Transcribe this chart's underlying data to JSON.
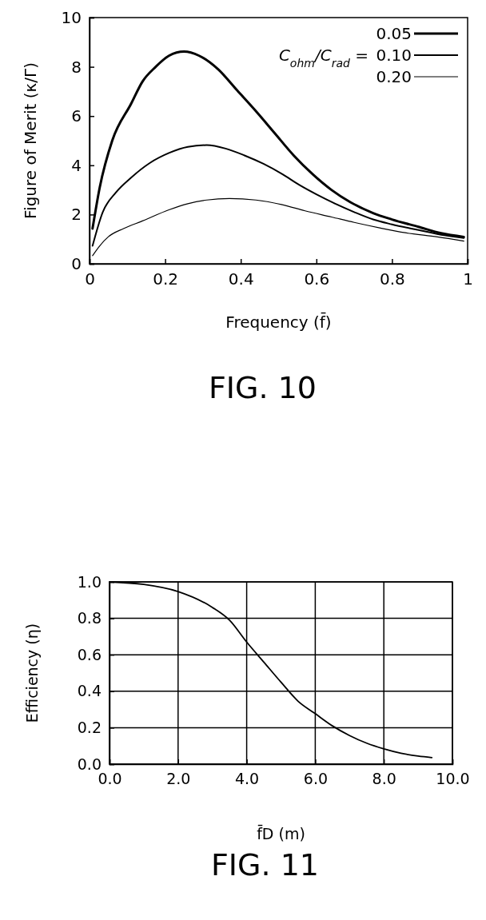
{
  "chart_data": [
    {
      "type": "line",
      "title": "FIG. 10",
      "xlabel": "Frequency (f̄)",
      "ylabel": "Figure of Merit (κ/Γ)",
      "legend_title": "C$_{ohm}$/C$_{rad}$ =",
      "legend": "top right",
      "grid": false,
      "marker": "none",
      "line_style": "solid",
      "xlim": [
        0,
        1
      ],
      "xticks": [
        0,
        0.2,
        0.4,
        0.6,
        0.8,
        1
      ],
      "ylim": [
        0,
        10
      ],
      "yticks": [
        0,
        2,
        4,
        6,
        8,
        10
      ],
      "series": [
        {
          "name": "0.05",
          "color": "#000000",
          "x": [
            0.008,
            0.027,
            0.06,
            0.11,
            0.14,
            0.175,
            0.21,
            0.25,
            0.29,
            0.34,
            0.39,
            0.44,
            0.49,
            0.54,
            0.59,
            0.64,
            0.69,
            0.75,
            0.8,
            0.87,
            0.93,
            0.99
          ],
          "values": [
            1.43,
            3.1,
            5.0,
            6.5,
            7.4,
            8.0,
            8.45,
            8.62,
            8.45,
            7.9,
            7.05,
            6.2,
            5.3,
            4.4,
            3.64,
            3.0,
            2.5,
            2.06,
            1.8,
            1.5,
            1.24,
            1.09
          ]
        },
        {
          "name": "0.10",
          "color": "#000000",
          "x": [
            0.008,
            0.035,
            0.07,
            0.11,
            0.16,
            0.21,
            0.26,
            0.31,
            0.36,
            0.41,
            0.46,
            0.51,
            0.555,
            0.6,
            0.65,
            0.7,
            0.75,
            0.8,
            0.87,
            0.93,
            0.99
          ],
          "values": [
            0.73,
            2.1,
            2.9,
            3.5,
            4.1,
            4.5,
            4.75,
            4.82,
            4.68,
            4.4,
            4.06,
            3.64,
            3.2,
            2.82,
            2.44,
            2.1,
            1.8,
            1.6,
            1.37,
            1.18,
            1.05
          ]
        },
        {
          "name": "0.20",
          "color": "#000000",
          "x": [
            0.008,
            0.027,
            0.05,
            0.09,
            0.14,
            0.21,
            0.26,
            0.31,
            0.37,
            0.44,
            0.51,
            0.57,
            0.64,
            0.7,
            0.77,
            0.835,
            0.92,
            0.99
          ],
          "values": [
            0.33,
            0.73,
            1.1,
            1.43,
            1.74,
            2.19,
            2.44,
            2.59,
            2.65,
            2.59,
            2.4,
            2.15,
            1.9,
            1.68,
            1.45,
            1.26,
            1.09,
            0.92
          ]
        }
      ]
    },
    {
      "type": "line",
      "title": "FIG. 11",
      "xlabel": "f̄D   (m)",
      "ylabel": "Efficiency (η)",
      "grid": true,
      "marker": "none",
      "line_style": "solid",
      "xlim": [
        0,
        10
      ],
      "xticks": [
        {
          "value": 0,
          "label": "0.0"
        },
        {
          "value": 2,
          "label": "2.0"
        },
        {
          "value": 4,
          "label": "4.0"
        },
        {
          "value": 6,
          "label": "6.0"
        },
        {
          "value": 8,
          "label": "8.0"
        },
        {
          "value": 10,
          "label": "10.0"
        }
      ],
      "ylim": [
        0,
        1
      ],
      "yticks": [
        {
          "value": 0,
          "label": "0.0"
        },
        {
          "value": 0.2,
          "label": "0.2"
        },
        {
          "value": 0.4,
          "label": "0.4"
        },
        {
          "value": 0.6,
          "label": "0.6"
        },
        {
          "value": 0.8,
          "label": "0.8"
        },
        {
          "value": 1,
          "label": "1.0"
        }
      ],
      "series": [
        {
          "color": "#000000",
          "x": [
            0,
            1,
            2,
            3,
            3.5,
            4,
            4.5,
            5,
            5.5,
            6,
            6.5,
            7,
            7.5,
            8,
            8.5,
            9,
            9.4
          ],
          "values": [
            1.0,
            0.986,
            0.947,
            0.86,
            0.79,
            0.67,
            0.56,
            0.45,
            0.345,
            0.277,
            0.21,
            0.157,
            0.115,
            0.084,
            0.06,
            0.044,
            0.036
          ]
        }
      ]
    }
  ]
}
